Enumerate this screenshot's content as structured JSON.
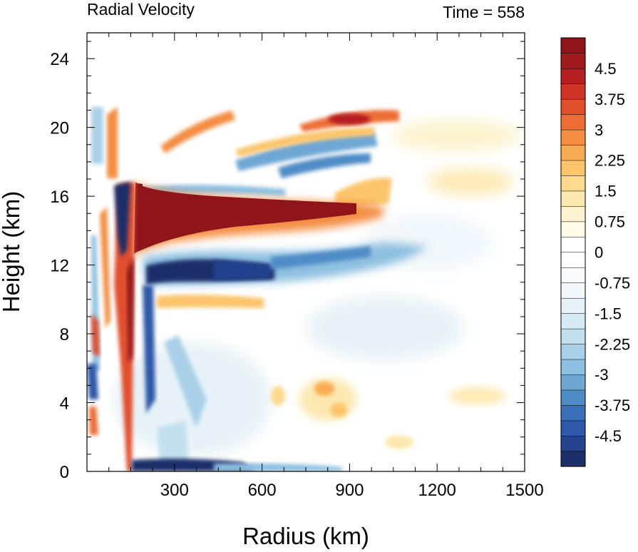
{
  "chart_data": {
    "type": "heatmap",
    "title": "Radial Velocity",
    "time_label": "Time = 558",
    "xlabel": "Radius (km)",
    "ylabel": "Height (km)",
    "xlim": [
      0,
      1500
    ],
    "ylim": [
      0,
      25.5
    ],
    "x_ticks": [
      300,
      600,
      900,
      1200,
      1500
    ],
    "x_tick_labels": [
      "300",
      "600",
      "900",
      "1200",
      "1500"
    ],
    "y_ticks": [
      0,
      4,
      8,
      12,
      16,
      20,
      24
    ],
    "y_tick_labels": [
      "0",
      "4",
      "8",
      "12",
      "16",
      "20",
      "24"
    ],
    "colorbar": {
      "levels_min": -5.25,
      "levels_max": 5.25,
      "step": 0.375,
      "labels": [
        "4.5",
        "3.75",
        "3",
        "2.25",
        "1.5",
        "0.75",
        "0",
        "-0.75",
        "-1.5",
        "-2.25",
        "-3",
        "-3.75",
        "-4.5"
      ],
      "label_values": [
        4.5,
        3.75,
        3,
        2.25,
        1.5,
        0.75,
        0,
        -0.75,
        -1.5,
        -2.25,
        -3,
        -3.75,
        -4.5
      ],
      "colors": [
        "#1b2f6b",
        "#24428e",
        "#2e58a8",
        "#3a70b8",
        "#4f8cc6",
        "#6ea7d4",
        "#8dbfe0",
        "#a9d0e8",
        "#c3e0ef",
        "#d7ebf5",
        "#e6f2f8",
        "#f1f7fb",
        "#f8fbfd",
        "#ffffff",
        "#ffffff",
        "#fefbe8",
        "#fdf3cf",
        "#fde8b0",
        "#fdd98e",
        "#fcc56c",
        "#f9ab53",
        "#f48d42",
        "#ec6e36",
        "#e0502d",
        "#cf3427",
        "#b71e22",
        "#a01a1d",
        "#8f151a"
      ]
    },
    "features": [
      {
        "name": "upper outflow jet",
        "peak_value": 5.25,
        "height_km": [
          13,
          16.5
        ],
        "radius_km": [
          170,
          1000
        ]
      },
      {
        "name": "mid-level inflow",
        "peak_value": -4.5,
        "height_km": [
          11,
          12.5
        ],
        "radius_km": [
          180,
          650
        ]
      },
      {
        "name": "boundary-layer inflow",
        "peak_value": -4.5,
        "height_km": [
          0,
          1
        ],
        "radius_km": [
          150,
          450
        ]
      },
      {
        "name": "eyewall band",
        "peak_value": 5.25,
        "height_km": [
          0,
          16.5
        ],
        "radius_km": [
          140,
          175
        ]
      }
    ]
  }
}
